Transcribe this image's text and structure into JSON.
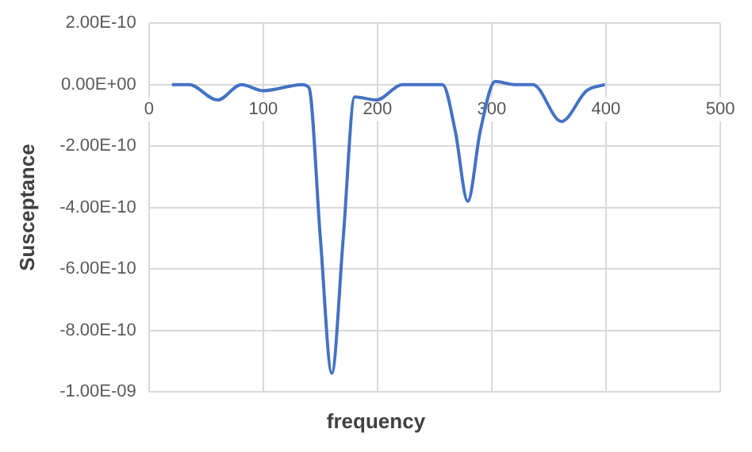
{
  "chart_data": {
    "type": "line",
    "xlabel": "frequency",
    "ylabel": "Susceptance",
    "xlim": [
      0,
      500
    ],
    "xticks": [
      0,
      100,
      200,
      300,
      400,
      500
    ],
    "ylim": [
      -1e-09,
      2e-10
    ],
    "yticks": [
      {
        "value": 2e-10,
        "label": "2.00E-10"
      },
      {
        "value": 0,
        "label": "0.00E+00"
      },
      {
        "value": -2e-10,
        "label": "-2.00E-10"
      },
      {
        "value": -4e-10,
        "label": "-4.00E-10"
      },
      {
        "value": -6e-10,
        "label": "-6.00E-10"
      },
      {
        "value": -8e-10,
        "label": "-8.00E-10"
      },
      {
        "value": -1e-09,
        "label": "-1.00E-09"
      }
    ],
    "grid": true,
    "legend": false,
    "marker": "none",
    "line_style": "solid",
    "series": [
      {
        "color": "#4472c4",
        "x": [
          20,
          35,
          60,
          81,
          100,
          134,
          140,
          150,
          160,
          170,
          180,
          199,
          222,
          243,
          257,
          268,
          279,
          290,
          303,
          320,
          336,
          361,
          383,
          399
        ],
        "values": [
          0,
          0,
          -5e-11,
          0,
          -2e-11,
          0,
          -1e-11,
          -5e-10,
          -9.4e-10,
          -5e-10,
          -4e-11,
          -5e-11,
          0,
          0,
          0,
          -1.5e-10,
          -3.8e-10,
          -1.5e-10,
          1e-11,
          0,
          0,
          -1.2e-10,
          -2e-11,
          0
        ]
      }
    ]
  }
}
